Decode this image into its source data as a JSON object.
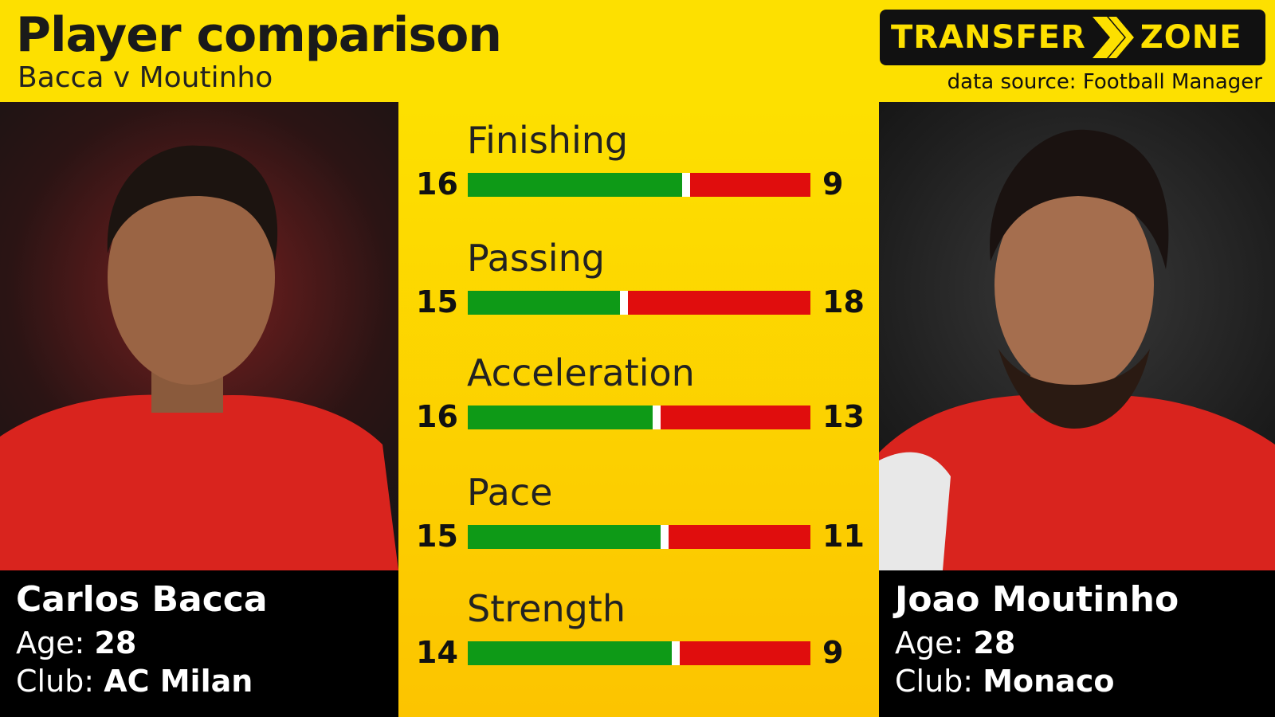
{
  "header": {
    "title": "Player comparison",
    "subtitle": "Bacca v Moutinho",
    "logo_left": "TRANSFER",
    "logo_right": "ZONE",
    "source": "data source: Football Manager"
  },
  "players": {
    "left": {
      "name": "Carlos Bacca",
      "age_label": "Age:",
      "age": "28",
      "club_label": "Club:",
      "club": "AC Milan"
    },
    "right": {
      "name": "Joao Moutinho",
      "age_label": "Age:",
      "age": "28",
      "club_label": "Club:",
      "club": "Monaco"
    }
  },
  "colors": {
    "background": "#fde000",
    "left_bar": "#0e9a17",
    "right_bar": "#e00d0d",
    "divider": "#ffffff"
  },
  "chart_data": {
    "type": "bar",
    "title": "Player comparison",
    "categories": [
      "Finishing",
      "Passing",
      "Acceleration",
      "Pace",
      "Strength"
    ],
    "series": [
      {
        "name": "Carlos Bacca",
        "values": [
          16,
          15,
          16,
          15,
          14
        ]
      },
      {
        "name": "Joao Moutinho",
        "values": [
          9,
          18,
          13,
          11,
          9
        ]
      }
    ]
  }
}
